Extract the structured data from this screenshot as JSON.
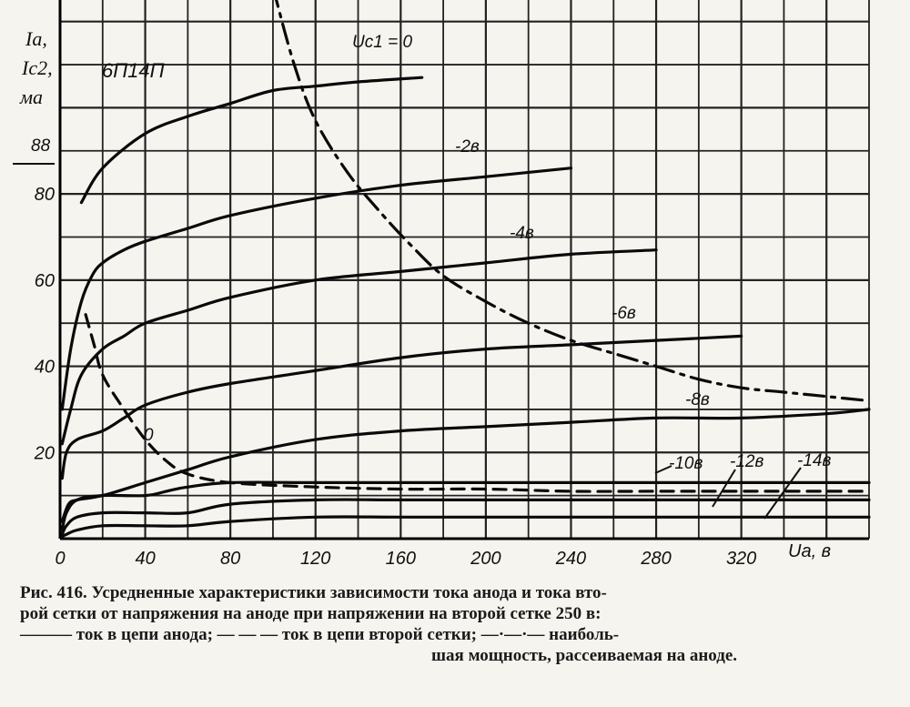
{
  "chart_data": {
    "type": "line",
    "title": "6П14П",
    "ylabel_lines": [
      "Ia,",
      "Ic2,",
      "ма"
    ],
    "xlabel": "Ua, в",
    "xlim": [
      0,
      380
    ],
    "ylim": [
      0,
      125
    ],
    "x_ticks": [
      0,
      40,
      80,
      120,
      160,
      200,
      240,
      280,
      320
    ],
    "y_ticks": [
      20,
      40,
      60,
      80
    ],
    "grid": true,
    "series": [
      {
        "name": "Uc1 = 0",
        "style": "solid",
        "x": [
          10,
          20,
          40,
          60,
          80,
          100,
          120,
          140,
          170
        ],
        "y": [
          78,
          86,
          94,
          98,
          101,
          104,
          105,
          106,
          107
        ]
      },
      {
        "name": "-2в",
        "style": "solid",
        "x": [
          1,
          5,
          10,
          15,
          20,
          30,
          40,
          60,
          80,
          120,
          160,
          200,
          240
        ],
        "y": [
          30,
          44,
          55,
          61,
          64,
          67,
          69,
          72,
          75,
          79,
          82,
          84,
          86
        ]
      },
      {
        "name": "-4в",
        "style": "solid",
        "x": [
          1,
          5,
          10,
          20,
          30,
          40,
          60,
          80,
          120,
          160,
          200,
          240,
          280
        ],
        "y": [
          22,
          30,
          38,
          44,
          47,
          50,
          53,
          56,
          60,
          62,
          64,
          66,
          67
        ]
      },
      {
        "name": "-6в",
        "style": "solid",
        "x": [
          1,
          3,
          8,
          20,
          30,
          40,
          60,
          80,
          120,
          160,
          200,
          240,
          280,
          320
        ],
        "y": [
          14,
          20,
          23,
          25,
          28,
          31,
          34,
          36,
          39,
          42,
          44,
          45,
          46,
          47
        ]
      },
      {
        "name": "-8в",
        "style": "solid",
        "x": [
          1,
          4,
          8,
          20,
          40,
          60,
          80,
          120,
          160,
          200,
          240,
          280,
          320,
          360,
          380
        ],
        "y": [
          4,
          8,
          9,
          10,
          13,
          16,
          19,
          23,
          25,
          26,
          27,
          28,
          28,
          29,
          30
        ]
      },
      {
        "name": "-10в",
        "style": "solid",
        "x": [
          1,
          3,
          8,
          20,
          40,
          50,
          60,
          80,
          120,
          160,
          200,
          240,
          280,
          320,
          380
        ],
        "y": [
          2,
          6,
          9,
          10,
          10,
          11,
          12,
          13,
          13,
          13,
          13,
          13,
          13,
          13,
          13
        ]
      },
      {
        "name": "-12в",
        "style": "solid",
        "x": [
          1,
          3,
          8,
          20,
          40,
          60,
          80,
          120,
          160,
          200,
          240,
          280,
          320,
          380
        ],
        "y": [
          1,
          3,
          5,
          6,
          6,
          6,
          8,
          9,
          9,
          9,
          9,
          9,
          9,
          9
        ]
      },
      {
        "name": "-14в",
        "style": "solid",
        "x": [
          1,
          3,
          8,
          20,
          40,
          60,
          80,
          120,
          160,
          200,
          240,
          280,
          320,
          380
        ],
        "y": [
          0.5,
          1,
          2,
          3,
          3,
          3,
          4,
          5,
          5,
          5,
          5,
          5,
          5,
          5
        ]
      },
      {
        "name": "0",
        "style": "dashed",
        "x": [
          12,
          16,
          20,
          30,
          40,
          50,
          60,
          80,
          120,
          160,
          200,
          240,
          280,
          320,
          380
        ],
        "y": [
          52,
          45,
          38,
          30,
          23,
          18,
          15,
          13,
          12,
          11.5,
          11.5,
          11,
          11,
          11,
          11
        ]
      },
      {
        "name": "",
        "style": "dashdot",
        "x": [
          100,
          110,
          120,
          135,
          150,
          165,
          180,
          200,
          220,
          240,
          260,
          280,
          300,
          320,
          340,
          360,
          380
        ],
        "y": [
          128,
          110,
          97,
          85,
          76,
          68,
          61,
          55,
          50,
          46,
          43,
          40,
          37,
          35,
          34,
          33,
          32
        ]
      }
    ],
    "annotations": {
      "uc1_label": "Uc1 = 0",
      "lbl_m2": "-2в",
      "lbl_m4": "-4в",
      "lbl_m6": "-6в",
      "lbl_m8": "-8в",
      "lbl_m10": "-10в",
      "lbl_m12": "-12в",
      "lbl_m14": "-14в",
      "lbl_dash0": "0",
      "lbl_88": "88"
    }
  },
  "caption": {
    "line1": "Рис. 416. Усредненные характеристики зависимости тока анода и тока вто-",
    "line2": "рой сетки от напряжения на аноде при напряжении на второй сетке 250 в:",
    "line3": "——— ток в цепи  анода; — — — ток в цепи второй сетки; —·—·— наиболь-",
    "line4": "шая мощность, рассеиваемая на аноде."
  }
}
